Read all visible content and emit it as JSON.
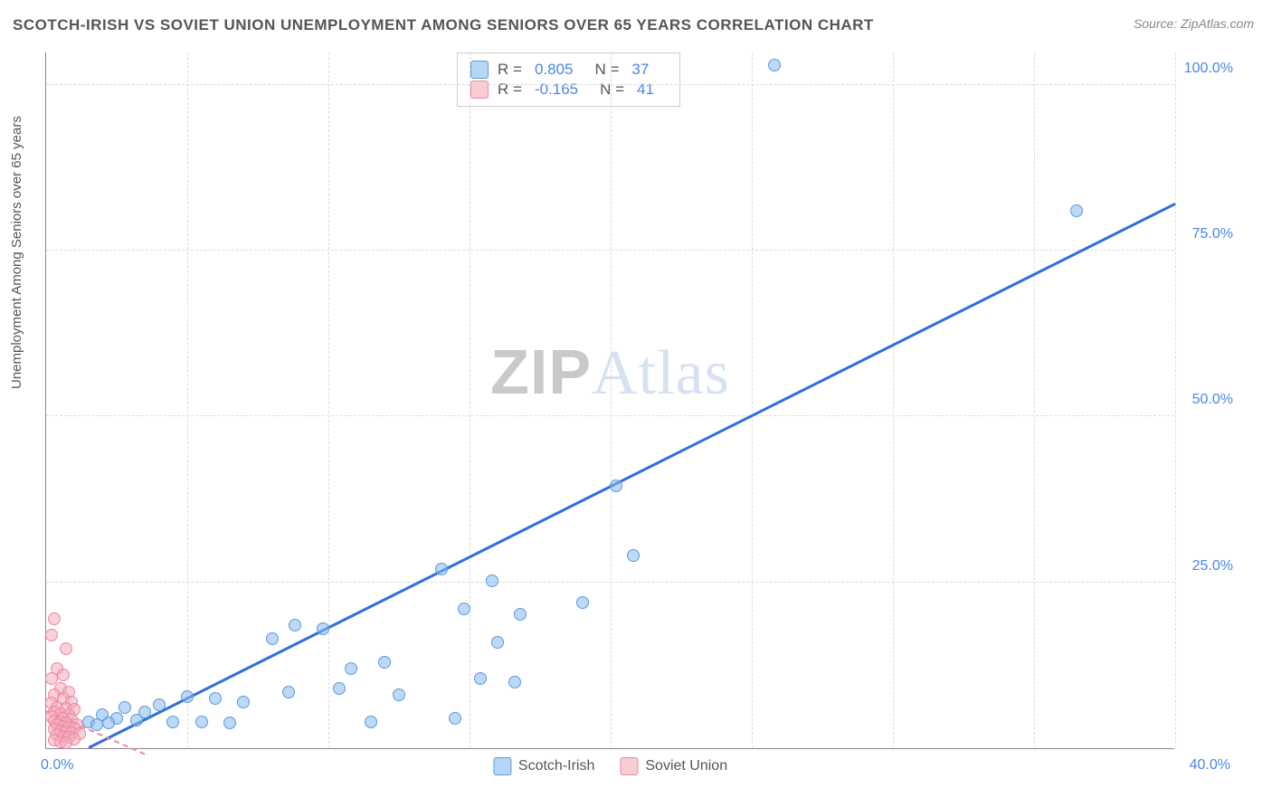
{
  "title": "SCOTCH-IRISH VS SOVIET UNION UNEMPLOYMENT AMONG SENIORS OVER 65 YEARS CORRELATION CHART",
  "source": "Source: ZipAtlas.com",
  "y_axis_label": "Unemployment Among Seniors over 65 years",
  "watermark_bold": "ZIP",
  "watermark_light": "Atlas",
  "chart": {
    "type": "scatter",
    "xlim": [
      0,
      40
    ],
    "ylim": [
      0,
      105
    ],
    "x_ticks": [
      0,
      40
    ],
    "x_tick_labels": [
      "0.0%",
      "40.0%"
    ],
    "y_ticks": [
      25,
      50,
      75,
      100
    ],
    "y_tick_labels": [
      "25.0%",
      "50.0%",
      "75.0%",
      "100.0%"
    ],
    "x_grid": [
      5,
      10,
      15,
      20,
      25,
      30,
      35,
      40
    ],
    "y_grid": [
      25,
      50,
      75,
      100
    ],
    "background_color": "#ffffff",
    "grid_color": "#dcdcdc",
    "marker_size": 14,
    "series": [
      {
        "name": "Scotch-Irish",
        "color_fill": "rgba(135,186,240,0.55)",
        "color_stroke": "#5a9bd8",
        "R": "0.805",
        "N": "37",
        "trend": {
          "x1": 1.5,
          "y1": 0,
          "x2": 40,
          "y2": 82,
          "dashed": false,
          "color": "#2e6fd8"
        },
        "points": [
          {
            "x": 25.8,
            "y": 103
          },
          {
            "x": 36.5,
            "y": 81
          },
          {
            "x": 20.2,
            "y": 39.5
          },
          {
            "x": 20.8,
            "y": 29
          },
          {
            "x": 14.0,
            "y": 27
          },
          {
            "x": 15.8,
            "y": 25.2
          },
          {
            "x": 19.0,
            "y": 22
          },
          {
            "x": 14.8,
            "y": 21
          },
          {
            "x": 16.8,
            "y": 20.2
          },
          {
            "x": 8.8,
            "y": 18.5
          },
          {
            "x": 9.8,
            "y": 18
          },
          {
            "x": 8.0,
            "y": 16.5
          },
          {
            "x": 16.0,
            "y": 16
          },
          {
            "x": 12.0,
            "y": 13
          },
          {
            "x": 10.8,
            "y": 12
          },
          {
            "x": 15.4,
            "y": 10.5
          },
          {
            "x": 16.6,
            "y": 10
          },
          {
            "x": 10.4,
            "y": 9
          },
          {
            "x": 8.6,
            "y": 8.5
          },
          {
            "x": 12.5,
            "y": 8
          },
          {
            "x": 5.0,
            "y": 7.8
          },
          {
            "x": 6.0,
            "y": 7.5
          },
          {
            "x": 7.0,
            "y": 7
          },
          {
            "x": 4.0,
            "y": 6.5
          },
          {
            "x": 2.8,
            "y": 6.2
          },
          {
            "x": 3.5,
            "y": 5.5
          },
          {
            "x": 2.0,
            "y": 5
          },
          {
            "x": 2.5,
            "y": 4.5
          },
          {
            "x": 3.2,
            "y": 4.2
          },
          {
            "x": 4.5,
            "y": 4
          },
          {
            "x": 5.5,
            "y": 4
          },
          {
            "x": 6.5,
            "y": 3.8
          },
          {
            "x": 11.5,
            "y": 4
          },
          {
            "x": 14.5,
            "y": 4.5
          },
          {
            "x": 1.5,
            "y": 4
          },
          {
            "x": 1.8,
            "y": 3.5
          },
          {
            "x": 2.2,
            "y": 3.8
          }
        ]
      },
      {
        "name": "Soviet Union",
        "color_fill": "rgba(245,170,185,0.55)",
        "color_stroke": "#e88aa0",
        "R": "-0.165",
        "N": "41",
        "trend": {
          "x1": 0,
          "y1": 5.5,
          "x2": 3.5,
          "y2": -1,
          "dashed": true,
          "color": "#e88aa0"
        },
        "points": [
          {
            "x": 0.3,
            "y": 19.5
          },
          {
            "x": 0.2,
            "y": 17
          },
          {
            "x": 0.7,
            "y": 15
          },
          {
            "x": 0.4,
            "y": 12
          },
          {
            "x": 0.6,
            "y": 11
          },
          {
            "x": 0.2,
            "y": 10.5
          },
          {
            "x": 0.5,
            "y": 9
          },
          {
            "x": 0.8,
            "y": 8.5
          },
          {
            "x": 0.3,
            "y": 8
          },
          {
            "x": 0.6,
            "y": 7.5
          },
          {
            "x": 0.9,
            "y": 7
          },
          {
            "x": 0.2,
            "y": 6.8
          },
          {
            "x": 0.4,
            "y": 6.2
          },
          {
            "x": 0.7,
            "y": 6
          },
          {
            "x": 1.0,
            "y": 5.8
          },
          {
            "x": 0.3,
            "y": 5.5
          },
          {
            "x": 0.5,
            "y": 5.2
          },
          {
            "x": 0.8,
            "y": 5
          },
          {
            "x": 0.2,
            "y": 4.8
          },
          {
            "x": 0.6,
            "y": 4.5
          },
          {
            "x": 0.9,
            "y": 4.3
          },
          {
            "x": 0.3,
            "y": 4.1
          },
          {
            "x": 0.5,
            "y": 4
          },
          {
            "x": 0.7,
            "y": 3.8
          },
          {
            "x": 1.1,
            "y": 3.6
          },
          {
            "x": 0.4,
            "y": 3.5
          },
          {
            "x": 0.6,
            "y": 3.3
          },
          {
            "x": 0.8,
            "y": 3.1
          },
          {
            "x": 1.0,
            "y": 3
          },
          {
            "x": 0.3,
            "y": 2.8
          },
          {
            "x": 0.5,
            "y": 2.6
          },
          {
            "x": 0.7,
            "y": 2.5
          },
          {
            "x": 0.9,
            "y": 2.3
          },
          {
            "x": 1.2,
            "y": 2.2
          },
          {
            "x": 0.4,
            "y": 2
          },
          {
            "x": 0.6,
            "y": 1.8
          },
          {
            "x": 0.8,
            "y": 1.6
          },
          {
            "x": 1.0,
            "y": 1.4
          },
          {
            "x": 0.3,
            "y": 1.2
          },
          {
            "x": 0.5,
            "y": 1
          },
          {
            "x": 0.7,
            "y": 0.8
          }
        ]
      }
    ]
  },
  "legend": {
    "items": [
      {
        "label": "Scotch-Irish",
        "class": "blue"
      },
      {
        "label": "Soviet Union",
        "class": "pink"
      }
    ]
  },
  "stats_labels": {
    "R": "R =",
    "N": "N ="
  }
}
